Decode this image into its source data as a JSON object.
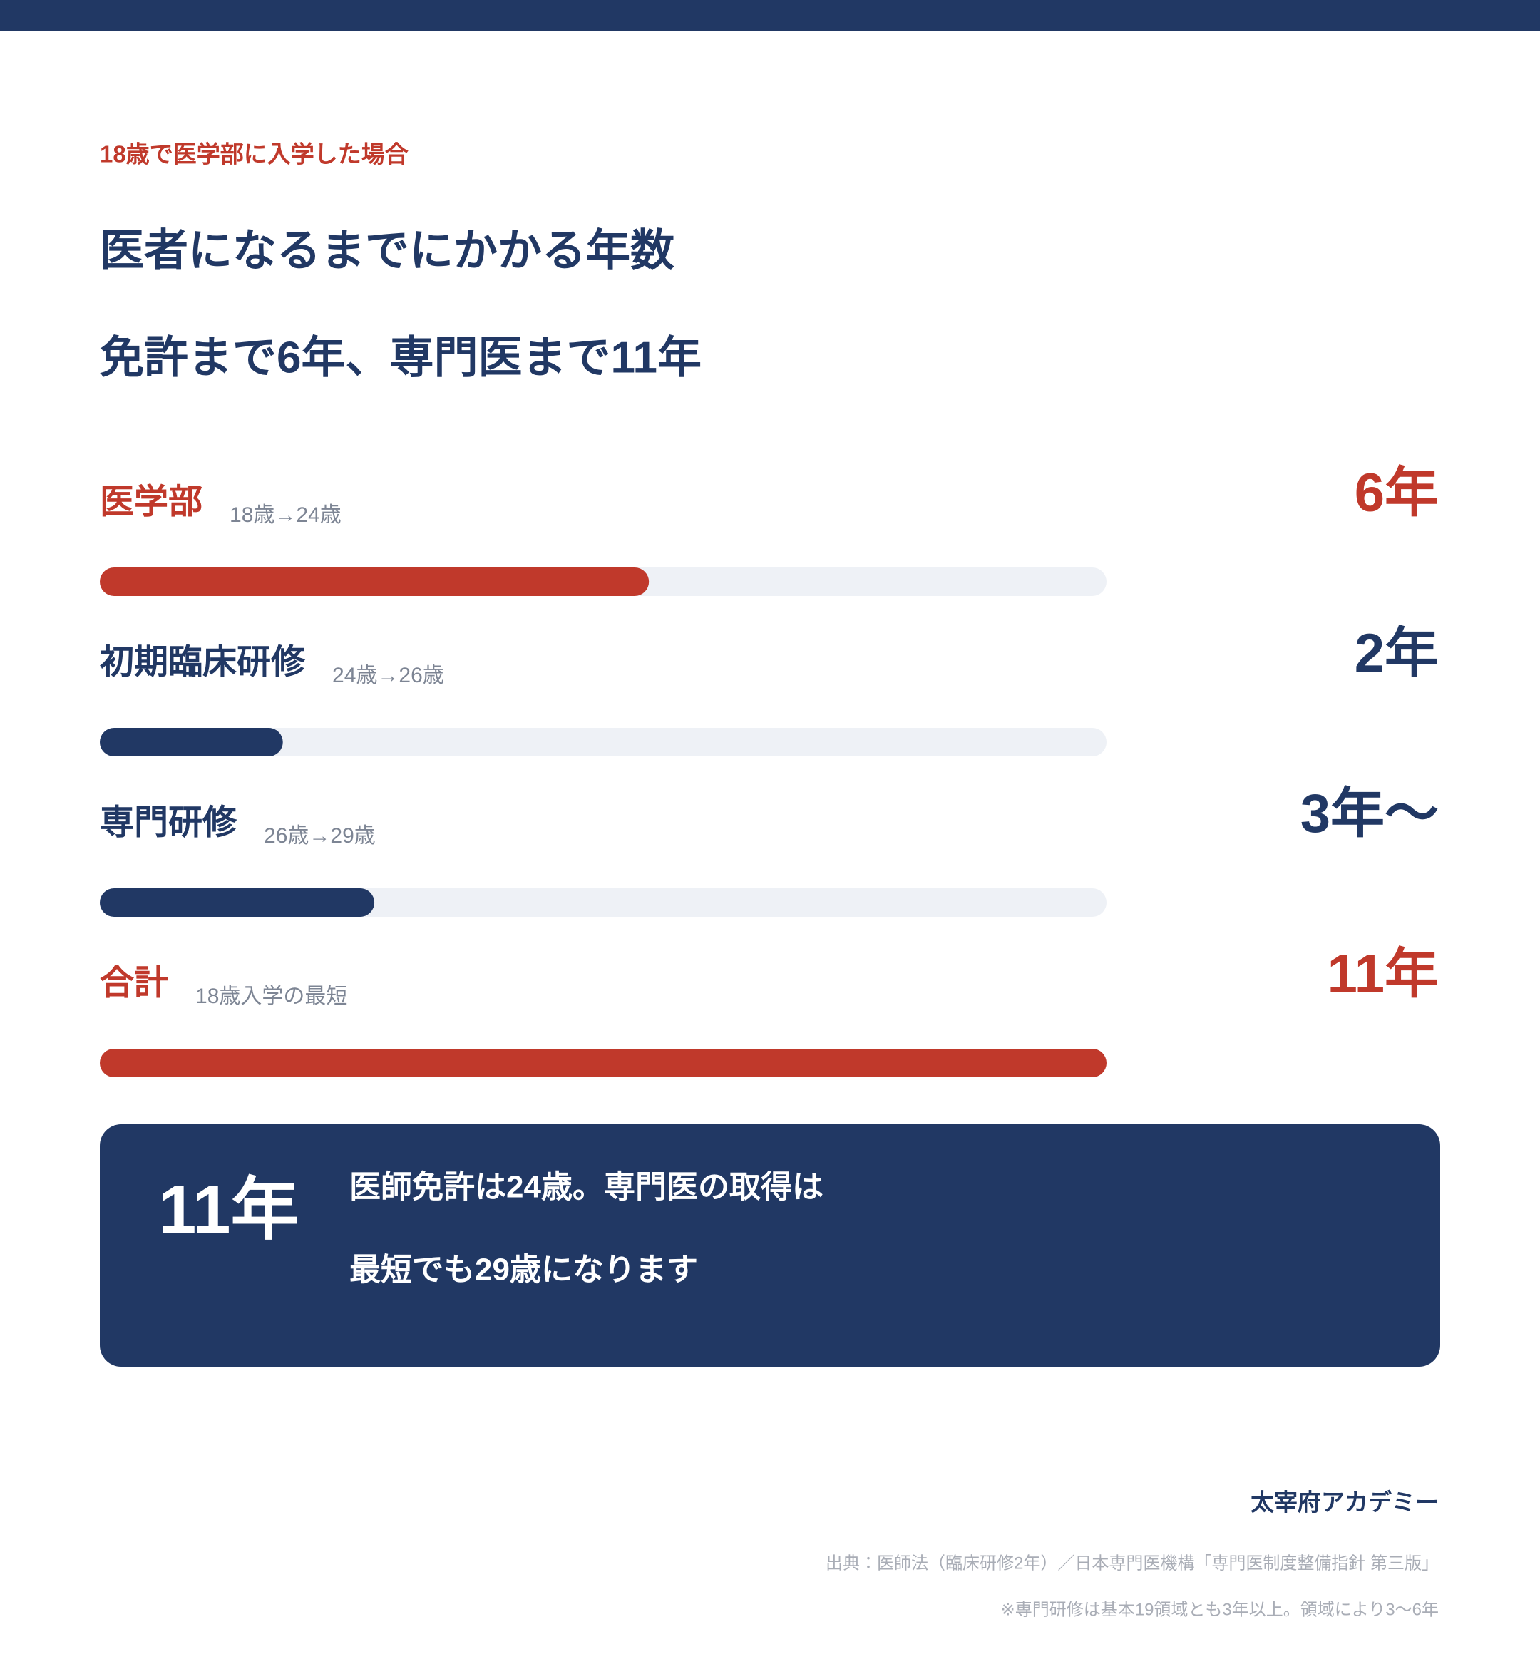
{
  "header": {
    "eyebrow": "18歳で医学部に入学した場合",
    "title": "医者になるまでにかかる年数",
    "subtitle": "免許まで6年、専門医まで11年"
  },
  "chart_data": {
    "type": "bar",
    "orientation": "horizontal",
    "categories": [
      "医学部",
      "初期臨床研修",
      "専門研修",
      "合計"
    ],
    "category_notes": [
      "18歳→24歳",
      "24歳→26歳",
      "26歳→29歳",
      "18歳入学の最短"
    ],
    "values": [
      6,
      2,
      3,
      11
    ],
    "value_labels": [
      "6年",
      "2年",
      "3年〜",
      "11年"
    ],
    "colors": [
      "#c0392b",
      "#213864",
      "#213864",
      "#c0392b"
    ],
    "xlim": [
      0,
      11
    ]
  },
  "summary": {
    "headline": "11年",
    "lines": [
      "医師免許は24歳。専門医の取得は",
      "最短でも29歳になります"
    ]
  },
  "footer": {
    "brand": "太宰府アカデミー",
    "source": "出典：医師法（臨床研修2年）／日本専門医機構「専門医制度整備指針 第三版」",
    "note": "※専門研修は基本19領域とも3年以上。領域により3〜6年"
  }
}
